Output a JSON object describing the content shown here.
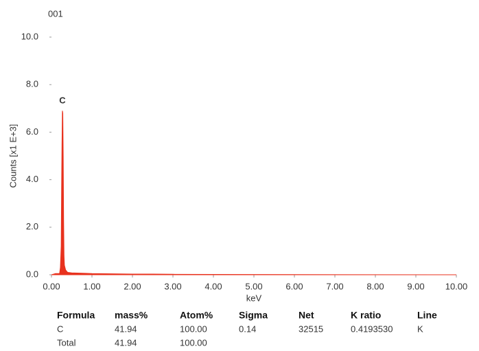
{
  "chart_data": {
    "type": "area",
    "title": "001",
    "xlabel": "keV",
    "ylabel": "Counts [x1 E+3]",
    "color": "#e8321e",
    "annotations": [
      {
        "text": "C"
      }
    ],
    "x": [
      0.0,
      0.1,
      0.2,
      0.22,
      0.24,
      0.25,
      0.26,
      0.27,
      0.28,
      0.29,
      0.3,
      0.31,
      0.32,
      0.35,
      0.4,
      0.5,
      1.0,
      2.0,
      2.5,
      3.0,
      5.0,
      10.0
    ],
    "values": [
      0.0,
      0.05,
      0.05,
      0.3,
      1.2,
      3.6,
      5.5,
      6.9,
      6.8,
      5.0,
      2.3,
      0.8,
      0.4,
      0.2,
      0.1,
      0.08,
      0.05,
      0.03,
      0.03,
      0.02,
      0.01,
      0.0
    ],
    "xlim": [
      0,
      10
    ],
    "ylim": [
      0,
      10
    ],
    "xticks": [
      {
        "value": 0,
        "label": "0.00"
      },
      {
        "value": 1,
        "label": "1.00"
      },
      {
        "value": 2,
        "label": "2.00"
      },
      {
        "value": 3,
        "label": "3.00"
      },
      {
        "value": 4,
        "label": "4.00"
      },
      {
        "value": 5,
        "label": "5.00"
      },
      {
        "value": 6,
        "label": "6.00"
      },
      {
        "value": 7,
        "label": "7.00"
      },
      {
        "value": 8,
        "label": "8.00"
      },
      {
        "value": 9,
        "label": "9.00"
      },
      {
        "value": 10,
        "label": "10.00"
      }
    ],
    "yticks": [
      {
        "value": 0,
        "label": "0.0"
      },
      {
        "value": 2,
        "label": "2.0"
      },
      {
        "value": 4,
        "label": "4.0"
      },
      {
        "value": 6,
        "label": "6.0"
      },
      {
        "value": 8,
        "label": "8.0"
      },
      {
        "value": 10,
        "label": "10.0"
      }
    ]
  },
  "table": {
    "columns": [
      "Formula",
      "mass%",
      "Atom%",
      "Sigma",
      "Net",
      "K ratio",
      "Line"
    ],
    "rows": [
      [
        "C",
        "41.94",
        "100.00",
        "0.14",
        "32515",
        "0.4193530",
        "K"
      ],
      [
        "Total",
        "41.94",
        "100.00"
      ]
    ]
  }
}
